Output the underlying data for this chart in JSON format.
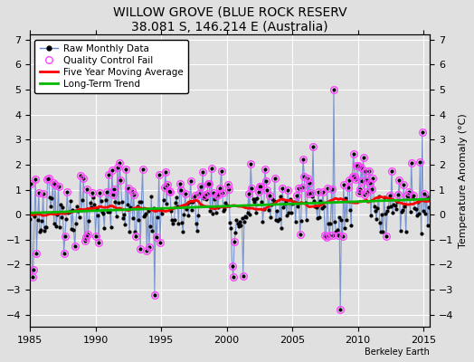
{
  "title": "WILLOW GROVE (BLUE ROCK RESERV",
  "subtitle": "38.081 S, 146.214 E (Australia)",
  "ylabel": "Temperature Anomaly (°C)",
  "credit": "Berkeley Earth",
  "xlim": [
    1985.0,
    2015.5
  ],
  "ylim": [
    -4.5,
    7.2
  ],
  "yticks_left": [
    -4,
    -3,
    -2,
    -1,
    0,
    1,
    2,
    3,
    4,
    5,
    6,
    7
  ],
  "yticks_right": [
    -4,
    -3,
    -2,
    -1,
    0,
    1,
    2,
    3,
    4,
    5,
    6,
    7
  ],
  "xticks": [
    1985,
    1990,
    1995,
    2000,
    2005,
    2010,
    2015
  ],
  "bg_color": "#e0e0e0",
  "raw_line_color": "#6688cc",
  "raw_dot_color": "#000000",
  "qc_color": "#ff44ff",
  "mavg_color": "#ff0000",
  "trend_color": "#00bb00",
  "grid_color": "#ffffff",
  "title_fontsize": 10,
  "subtitle_fontsize": 9,
  "tick_fontsize": 8,
  "legend_fontsize": 7.5,
  "ylabel_fontsize": 8
}
